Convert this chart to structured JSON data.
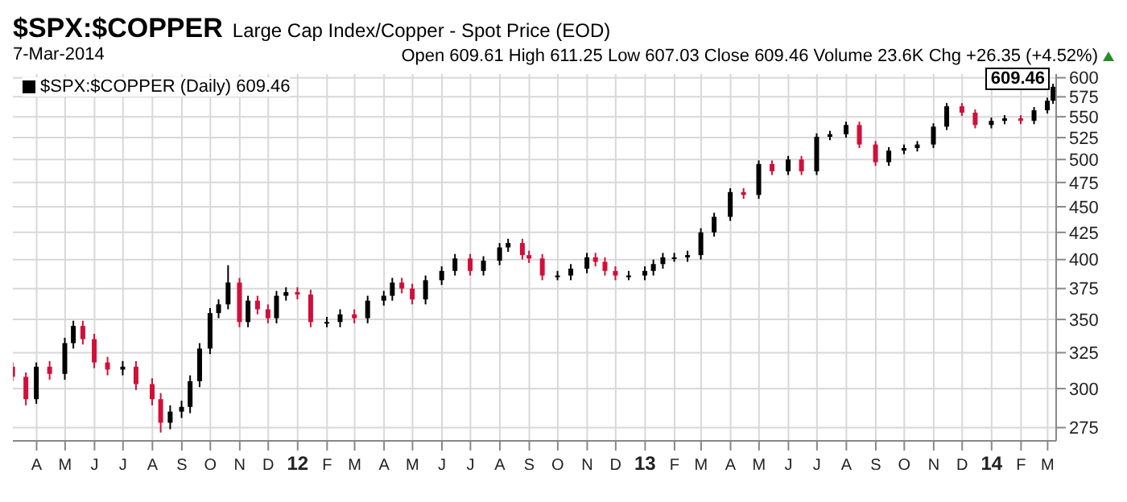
{
  "chart_data": {
    "type": "candlestick",
    "title": "$SPX:$COPPER",
    "subtitle": "Large Cap Index/Copper - Spot Price (EOD)",
    "annotations": [
      "7-Mar-2014",
      "Open 609.61  High 611.25  Low 607.03  Close 609.46  Volume 23.6K  Chg +26.35 (+4.52%)",
      "609.46"
    ],
    "x": [
      "2011-03-07",
      "2011-03-21",
      "2011-04-01",
      "2011-04-15",
      "2011-05-01",
      "2011-05-10",
      "2011-05-20",
      "2011-06-01",
      "2011-06-15",
      "2011-07-01",
      "2011-07-15",
      "2011-08-01",
      "2011-08-10",
      "2011-08-20",
      "2011-09-01",
      "2011-09-10",
      "2011-09-20",
      "2011-10-01",
      "2011-10-10",
      "2011-10-20",
      "2011-11-01",
      "2011-11-10",
      "2011-11-20",
      "2011-12-01",
      "2011-12-10",
      "2011-12-20",
      "2012-01-01",
      "2012-01-15",
      "2012-02-01",
      "2012-02-15",
      "2012-03-01",
      "2012-03-15",
      "2012-04-01",
      "2012-04-10",
      "2012-04-20",
      "2012-05-01",
      "2012-05-15",
      "2012-06-01",
      "2012-06-15",
      "2012-07-01",
      "2012-07-15",
      "2012-08-01",
      "2012-08-10",
      "2012-08-25",
      "2012-09-01",
      "2012-09-15",
      "2012-10-01",
      "2012-10-15",
      "2012-11-01",
      "2012-11-10",
      "2012-11-20",
      "2012-12-01",
      "2012-12-15",
      "2013-01-01",
      "2013-01-10",
      "2013-01-20",
      "2013-02-01",
      "2013-02-15",
      "2013-03-01",
      "2013-03-15",
      "2013-04-01",
      "2013-04-15",
      "2013-05-01",
      "2013-05-15",
      "2013-06-01",
      "2013-06-15",
      "2013-07-01",
      "2013-07-15",
      "2013-08-01",
      "2013-08-15",
      "2013-09-01",
      "2013-09-15",
      "2013-10-01",
      "2013-10-15",
      "2013-11-01",
      "2013-11-15",
      "2013-12-01",
      "2013-12-15",
      "2014-01-01",
      "2014-01-15",
      "2014-02-01",
      "2014-02-15",
      "2014-03-01",
      "2014-03-07"
    ],
    "series": [
      {
        "name": "$SPX:$COPPER (Daily) 609.46",
        "color": "#000000",
        "ohlc": [
          [
            315,
            318,
            305,
            308
          ],
          [
            308,
            311,
            289,
            293
          ],
          [
            293,
            318,
            290,
            315
          ],
          [
            315,
            319,
            306,
            310
          ],
          [
            310,
            336,
            306,
            332
          ],
          [
            332,
            349,
            328,
            345
          ],
          [
            345,
            349,
            331,
            335
          ],
          [
            335,
            339,
            314,
            318
          ],
          [
            318,
            322,
            309,
            313
          ],
          [
            313,
            319,
            309,
            315
          ],
          [
            315,
            319,
            299,
            303
          ],
          [
            303,
            307,
            289,
            293
          ],
          [
            293,
            297,
            272,
            278
          ],
          [
            278,
            289,
            274,
            285
          ],
          [
            285,
            292,
            281,
            288
          ],
          [
            288,
            309,
            284,
            305
          ],
          [
            305,
            332,
            301,
            328
          ],
          [
            328,
            359,
            324,
            355
          ],
          [
            355,
            366,
            351,
            362
          ],
          [
            362,
            395,
            358,
            380
          ],
          [
            380,
            384,
            344,
            348
          ],
          [
            348,
            369,
            344,
            365
          ],
          [
            365,
            369,
            354,
            358
          ],
          [
            358,
            362,
            347,
            351
          ],
          [
            351,
            373,
            347,
            369
          ],
          [
            369,
            376,
            365,
            372
          ],
          [
            372,
            376,
            366,
            370
          ],
          [
            370,
            374,
            344,
            348
          ],
          [
            348,
            352,
            344,
            348
          ],
          [
            348,
            358,
            344,
            354
          ],
          [
            354,
            358,
            347,
            351
          ],
          [
            351,
            369,
            347,
            365
          ],
          [
            365,
            373,
            361,
            369
          ],
          [
            369,
            384,
            365,
            380
          ],
          [
            380,
            384,
            371,
            375
          ],
          [
            375,
            379,
            362,
            366
          ],
          [
            366,
            386,
            362,
            382
          ],
          [
            382,
            394,
            378,
            390
          ],
          [
            390,
            405,
            386,
            401
          ],
          [
            401,
            405,
            386,
            390
          ],
          [
            390,
            403,
            386,
            399
          ],
          [
            399,
            415,
            395,
            411
          ],
          [
            411,
            419,
            407,
            415
          ],
          [
            415,
            419,
            400,
            404
          ],
          [
            404,
            408,
            397,
            401
          ],
          [
            401,
            405,
            382,
            386
          ],
          [
            386,
            390,
            382,
            386
          ],
          [
            386,
            396,
            382,
            392
          ],
          [
            392,
            406,
            388,
            402
          ],
          [
            402,
            406,
            394,
            398
          ],
          [
            398,
            402,
            386,
            390
          ],
          [
            390,
            394,
            382,
            386
          ],
          [
            386,
            390,
            382,
            386
          ],
          [
            386,
            394,
            382,
            390
          ],
          [
            390,
            400,
            386,
            396
          ],
          [
            396,
            406,
            392,
            402
          ],
          [
            402,
            406,
            398,
            402
          ],
          [
            402,
            408,
            398,
            404
          ],
          [
            404,
            429,
            400,
            425
          ],
          [
            425,
            444,
            421,
            440
          ],
          [
            440,
            469,
            436,
            465
          ],
          [
            465,
            469,
            458,
            462
          ],
          [
            462,
            499,
            458,
            495
          ],
          [
            495,
            499,
            483,
            487
          ],
          [
            487,
            504,
            483,
            500
          ],
          [
            500,
            504,
            483,
            487
          ],
          [
            487,
            530,
            483,
            526
          ],
          [
            526,
            533,
            522,
            529
          ],
          [
            529,
            544,
            525,
            540
          ],
          [
            540,
            544,
            513,
            517
          ],
          [
            517,
            521,
            493,
            497
          ],
          [
            497,
            514,
            493,
            510
          ],
          [
            510,
            517,
            506,
            513
          ],
          [
            513,
            521,
            509,
            517
          ],
          [
            517,
            542,
            513,
            538
          ],
          [
            538,
            567,
            534,
            563
          ],
          [
            563,
            567,
            551,
            555
          ],
          [
            555,
            559,
            536,
            540
          ],
          [
            540,
            549,
            536,
            545
          ],
          [
            545,
            552,
            541,
            548
          ],
          [
            548,
            552,
            541,
            545
          ],
          [
            545,
            562,
            541,
            558
          ],
          [
            558,
            574,
            554,
            570
          ],
          [
            570,
            592,
            566,
            588
          ]
        ],
        "colors": [
          "#d0103a",
          "#d0103a",
          "#000000",
          "#d0103a",
          "#000000",
          "#000000",
          "#d0103a",
          "#d0103a",
          "#d0103a",
          "#000000",
          "#d0103a",
          "#d0103a",
          "#d0103a",
          "#000000",
          "#000000",
          "#000000",
          "#000000",
          "#000000",
          "#000000",
          "#000000",
          "#d0103a",
          "#000000",
          "#d0103a",
          "#d0103a",
          "#000000",
          "#000000",
          "#d0103a",
          "#d0103a",
          "#000000",
          "#000000",
          "#d0103a",
          "#000000",
          "#000000",
          "#000000",
          "#d0103a",
          "#d0103a",
          "#000000",
          "#000000",
          "#000000",
          "#d0103a",
          "#000000",
          "#000000",
          "#000000",
          "#d0103a",
          "#d0103a",
          "#d0103a",
          "#000000",
          "#000000",
          "#000000",
          "#d0103a",
          "#d0103a",
          "#d0103a",
          "#000000",
          "#000000",
          "#000000",
          "#000000",
          "#000000",
          "#000000",
          "#000000",
          "#000000",
          "#000000",
          "#d0103a",
          "#000000",
          "#d0103a",
          "#000000",
          "#d0103a",
          "#000000",
          "#000000",
          "#000000",
          "#d0103a",
          "#d0103a",
          "#000000",
          "#000000",
          "#000000",
          "#000000",
          "#000000",
          "#d0103a",
          "#d0103a",
          "#000000",
          "#000000",
          "#d0103a",
          "#000000",
          "#000000",
          "#000000"
        ]
      }
    ],
    "xlim": [
      "2011-03-07",
      "2014-03-10"
    ],
    "xticks": [
      {
        "value": "2011-04-01",
        "label": "A"
      },
      {
        "value": "2011-05-01",
        "label": "M"
      },
      {
        "value": "2011-06-01",
        "label": "J"
      },
      {
        "value": "2011-07-01",
        "label": "J"
      },
      {
        "value": "2011-08-01",
        "label": "A"
      },
      {
        "value": "2011-09-01",
        "label": "S"
      },
      {
        "value": "2011-10-01",
        "label": "O"
      },
      {
        "value": "2011-11-01",
        "label": "N"
      },
      {
        "value": "2011-12-01",
        "label": "D"
      },
      {
        "value": "2012-01-01",
        "label": "12"
      },
      {
        "value": "2012-02-01",
        "label": "F"
      },
      {
        "value": "2012-03-01",
        "label": "M"
      },
      {
        "value": "2012-04-01",
        "label": "A"
      },
      {
        "value": "2012-05-01",
        "label": "M"
      },
      {
        "value": "2012-06-01",
        "label": "J"
      },
      {
        "value": "2012-07-01",
        "label": "J"
      },
      {
        "value": "2012-08-01",
        "label": "A"
      },
      {
        "value": "2012-09-01",
        "label": "S"
      },
      {
        "value": "2012-10-01",
        "label": "O"
      },
      {
        "value": "2012-11-01",
        "label": "N"
      },
      {
        "value": "2012-12-01",
        "label": "D"
      },
      {
        "value": "2013-01-01",
        "label": "13"
      },
      {
        "value": "2013-02-01",
        "label": "F"
      },
      {
        "value": "2013-03-01",
        "label": "M"
      },
      {
        "value": "2013-04-01",
        "label": "A"
      },
      {
        "value": "2013-05-01",
        "label": "M"
      },
      {
        "value": "2013-06-01",
        "label": "J"
      },
      {
        "value": "2013-07-01",
        "label": "J"
      },
      {
        "value": "2013-08-01",
        "label": "A"
      },
      {
        "value": "2013-09-01",
        "label": "S"
      },
      {
        "value": "2013-10-01",
        "label": "O"
      },
      {
        "value": "2013-11-01",
        "label": "N"
      },
      {
        "value": "2013-12-01",
        "label": "D"
      },
      {
        "value": "2014-01-01",
        "label": "14"
      },
      {
        "value": "2014-02-01",
        "label": "F"
      },
      {
        "value": "2014-03-01",
        "label": "M"
      }
    ],
    "ylim": [
      267,
      605
    ],
    "yticks": [
      275,
      300,
      325,
      350,
      375,
      400,
      425,
      450,
      475,
      500,
      525,
      550,
      575,
      600
    ],
    "log": true,
    "grid": true,
    "legend": "top left"
  }
}
